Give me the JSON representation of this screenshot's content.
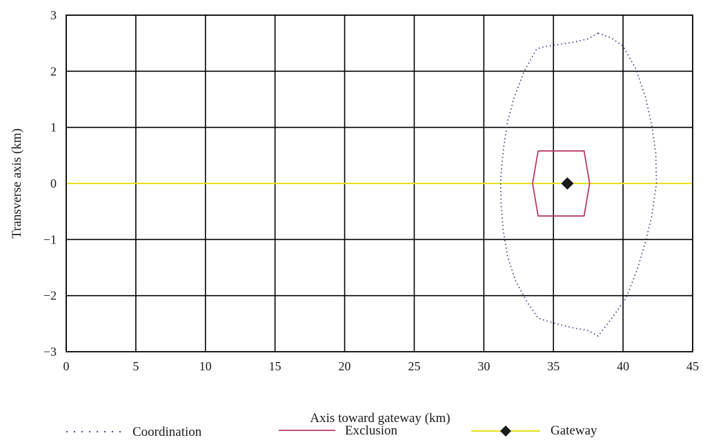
{
  "chart_data": {
    "type": "line",
    "title": "",
    "xlabel": "Axis toward gateway (km)",
    "ylabel": "Transverse axis (km)",
    "xlim": [
      0,
      45
    ],
    "ylim": [
      -3,
      3
    ],
    "xticks": [
      0,
      5,
      10,
      15,
      20,
      25,
      30,
      35,
      40,
      45
    ],
    "yticks": [
      3,
      2,
      1,
      0,
      -1,
      -2,
      -3
    ],
    "ytick_labels": [
      "3",
      "2",
      "1",
      "0",
      "−1",
      "−2",
      "−3"
    ],
    "grid": true,
    "legend_position": "bottom",
    "series": [
      {
        "name": "Coordination",
        "color": "#1f2a7a",
        "style": "dotted",
        "points": [
          [
            38.2,
            2.68
          ],
          [
            37.5,
            2.58
          ],
          [
            36.5,
            2.52
          ],
          [
            35.4,
            2.48
          ],
          [
            34.2,
            2.43
          ],
          [
            33.8,
            2.4
          ],
          [
            32.9,
            2.0
          ],
          [
            32.2,
            1.55
          ],
          [
            31.7,
            1.1
          ],
          [
            31.4,
            0.6
          ],
          [
            31.25,
            0.2
          ],
          [
            31.2,
            0.0
          ],
          [
            31.25,
            -0.4
          ],
          [
            31.4,
            -0.85
          ],
          [
            31.7,
            -1.3
          ],
          [
            32.3,
            -1.75
          ],
          [
            33.2,
            -2.15
          ],
          [
            33.9,
            -2.4
          ],
          [
            34.5,
            -2.45
          ],
          [
            35.5,
            -2.52
          ],
          [
            36.5,
            -2.58
          ],
          [
            37.5,
            -2.62
          ],
          [
            38.2,
            -2.72
          ],
          [
            39.2,
            -2.4
          ],
          [
            40.2,
            -2.05
          ],
          [
            41.0,
            -1.55
          ],
          [
            41.6,
            -1.05
          ],
          [
            42.05,
            -0.6
          ],
          [
            42.4,
            0.0
          ],
          [
            42.35,
            0.55
          ],
          [
            42.05,
            1.05
          ],
          [
            41.6,
            1.55
          ],
          [
            40.9,
            2.05
          ],
          [
            40.0,
            2.45
          ],
          [
            39.1,
            2.6
          ],
          [
            38.2,
            2.68
          ]
        ]
      },
      {
        "name": "Exclusion",
        "color": "#b5386a",
        "style": "solid",
        "points": [
          [
            33.9,
            0.58
          ],
          [
            37.2,
            0.58
          ],
          [
            37.6,
            0.0
          ],
          [
            37.2,
            -0.58
          ],
          [
            33.9,
            -0.58
          ],
          [
            33.5,
            0.0
          ],
          [
            33.9,
            0.58
          ]
        ]
      },
      {
        "name": "Gateway",
        "color": "#e6e21a",
        "marker_color": "#1a1a1a",
        "style": "solid",
        "points": [
          [
            0,
            0
          ],
          [
            45,
            0
          ]
        ],
        "marker_point": [
          36.0,
          0.0
        ]
      }
    ]
  }
}
